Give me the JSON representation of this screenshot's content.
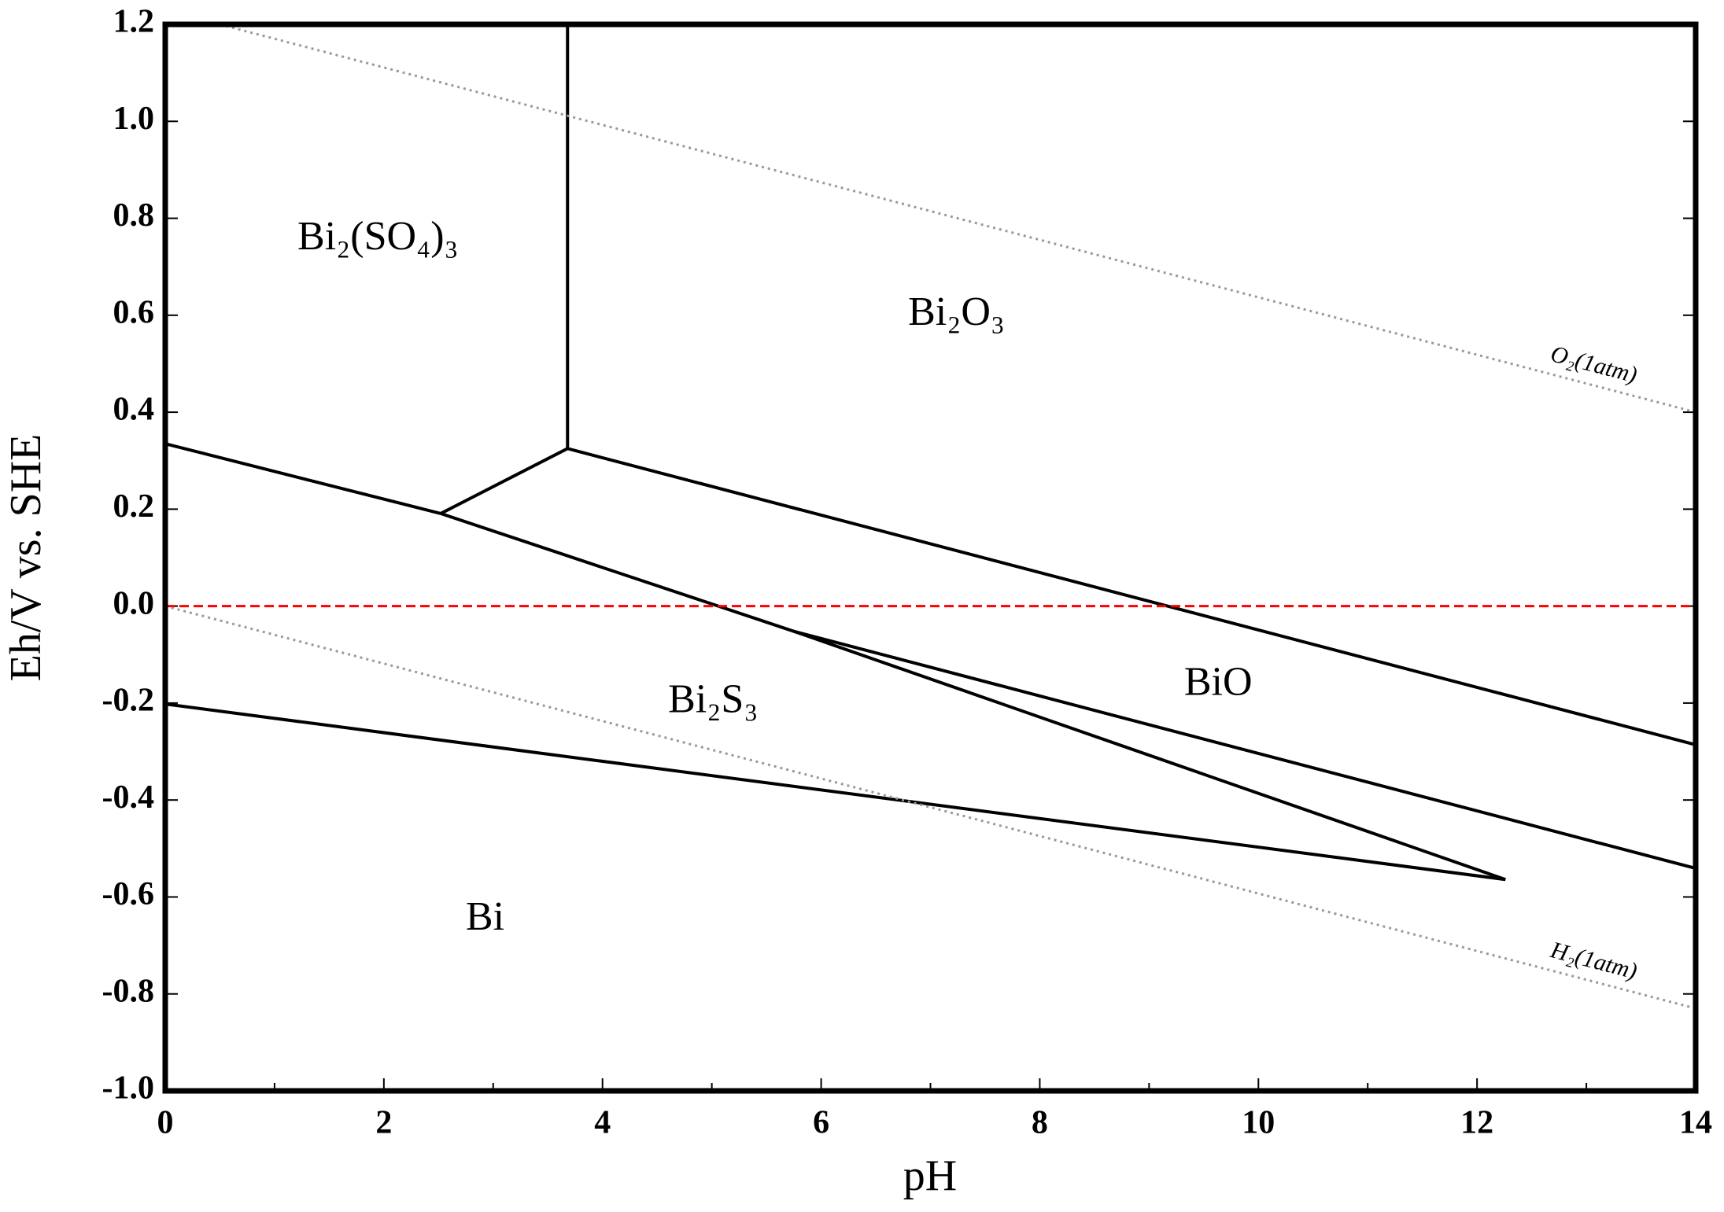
{
  "chart_data": {
    "type": "line",
    "x_label": "pH",
    "y_label": "Eh/V vs. SHE",
    "xlim": [
      0,
      14
    ],
    "ylim": [
      -1.0,
      1.2
    ],
    "xticks": [
      0,
      2,
      4,
      6,
      8,
      10,
      12,
      14
    ],
    "xminorticks": [
      1,
      3,
      5,
      7,
      9,
      11,
      13
    ],
    "yticks": [
      {
        "value": -1.0,
        "label": "-1.0"
      },
      -0.8,
      -0.6,
      -0.4,
      -0.2,
      {
        "value": 0.0,
        "label": "0.0"
      },
      0.2,
      0.4,
      0.6,
      0.8,
      {
        "value": 1.0,
        "label": "1.0"
      },
      1.2
    ],
    "series": [
      {
        "color": "#000000",
        "style": "solid",
        "x": [
          3.68,
          3.68
        ],
        "values": [
          0.325,
          1.2
        ]
      },
      {
        "color": "#000000",
        "style": "solid",
        "x": [
          0,
          2.52
        ],
        "values": [
          0.335,
          0.191
        ]
      },
      {
        "color": "#000000",
        "style": "solid",
        "x": [
          2.52,
          3.68
        ],
        "values": [
          0.191,
          0.325
        ]
      },
      {
        "color": "#000000",
        "style": "solid",
        "x": [
          3.68,
          14
        ],
        "values": [
          0.325,
          -0.286
        ]
      },
      {
        "color": "#000000",
        "style": "solid",
        "x": [
          2.52,
          5.75,
          12.26
        ],
        "values": [
          0.191,
          -0.052,
          -0.564
        ]
      },
      {
        "color": "#000000",
        "style": "solid",
        "x": [
          5.75,
          14
        ],
        "values": [
          -0.052,
          -0.541
        ]
      },
      {
        "color": "#000000",
        "style": "solid",
        "x": [
          0,
          12.26
        ],
        "values": [
          -0.202,
          -0.564
        ]
      },
      {
        "name": "O₂(1atm)",
        "color": "#999999",
        "style": "dotted",
        "x": [
          0.5,
          14
        ],
        "values": [
          1.2,
          0.4
        ]
      },
      {
        "name": "H₂(1atm)",
        "color": "#999999",
        "style": "dotted",
        "x": [
          0,
          14
        ],
        "values": [
          0,
          -0.83
        ]
      },
      {
        "color": "#ff0000",
        "style": "dashed",
        "x": [
          0,
          14
        ],
        "values": [
          0,
          0
        ]
      }
    ],
    "annotations": [
      "Bi₂(SO₄)₃",
      "Bi₂O₃",
      "BiO",
      "Bi₂S₃",
      "Bi"
    ]
  }
}
